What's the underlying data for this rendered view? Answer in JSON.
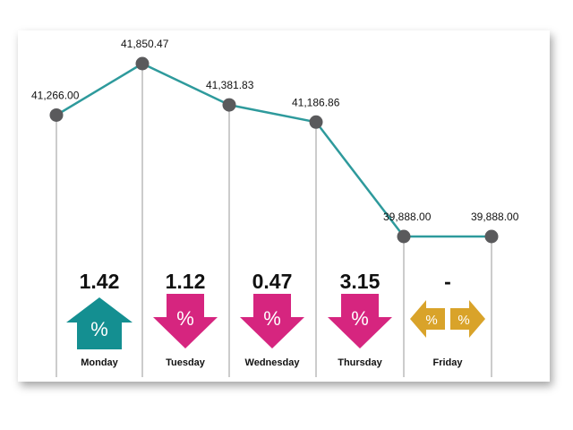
{
  "chart_data": {
    "type": "line",
    "title": "",
    "xlabel": "",
    "ylabel": "",
    "ylim": [
      39500,
      42000
    ],
    "grid": false,
    "points": [
      {
        "value": 41266.0,
        "label": "41,266.00"
      },
      {
        "value": 41850.47,
        "label": "41,850.47"
      },
      {
        "value": 41381.83,
        "label": "41,381.83"
      },
      {
        "value": 41186.86,
        "label": "41,186.86"
      },
      {
        "value": 39888.0,
        "label": "39,888.00"
      },
      {
        "value": 39888.0,
        "label": "39,888.00"
      }
    ],
    "days": [
      {
        "name": "Monday",
        "change": "1.42",
        "direction": "up"
      },
      {
        "name": "Tuesday",
        "change": "1.12",
        "direction": "down"
      },
      {
        "name": "Wednesday",
        "change": "0.47",
        "direction": "down"
      },
      {
        "name": "Thursday",
        "change": "3.15",
        "direction": "down"
      },
      {
        "name": "Friday",
        "change": "-",
        "direction": "flat"
      }
    ],
    "percent_symbol": "%"
  },
  "colors": {
    "line": "#2e9a9c",
    "point": "#5a5a5c",
    "up": "#148f91",
    "down": "#d6257f",
    "flat": "#d9a32a",
    "divider": "#9a9a9a"
  }
}
